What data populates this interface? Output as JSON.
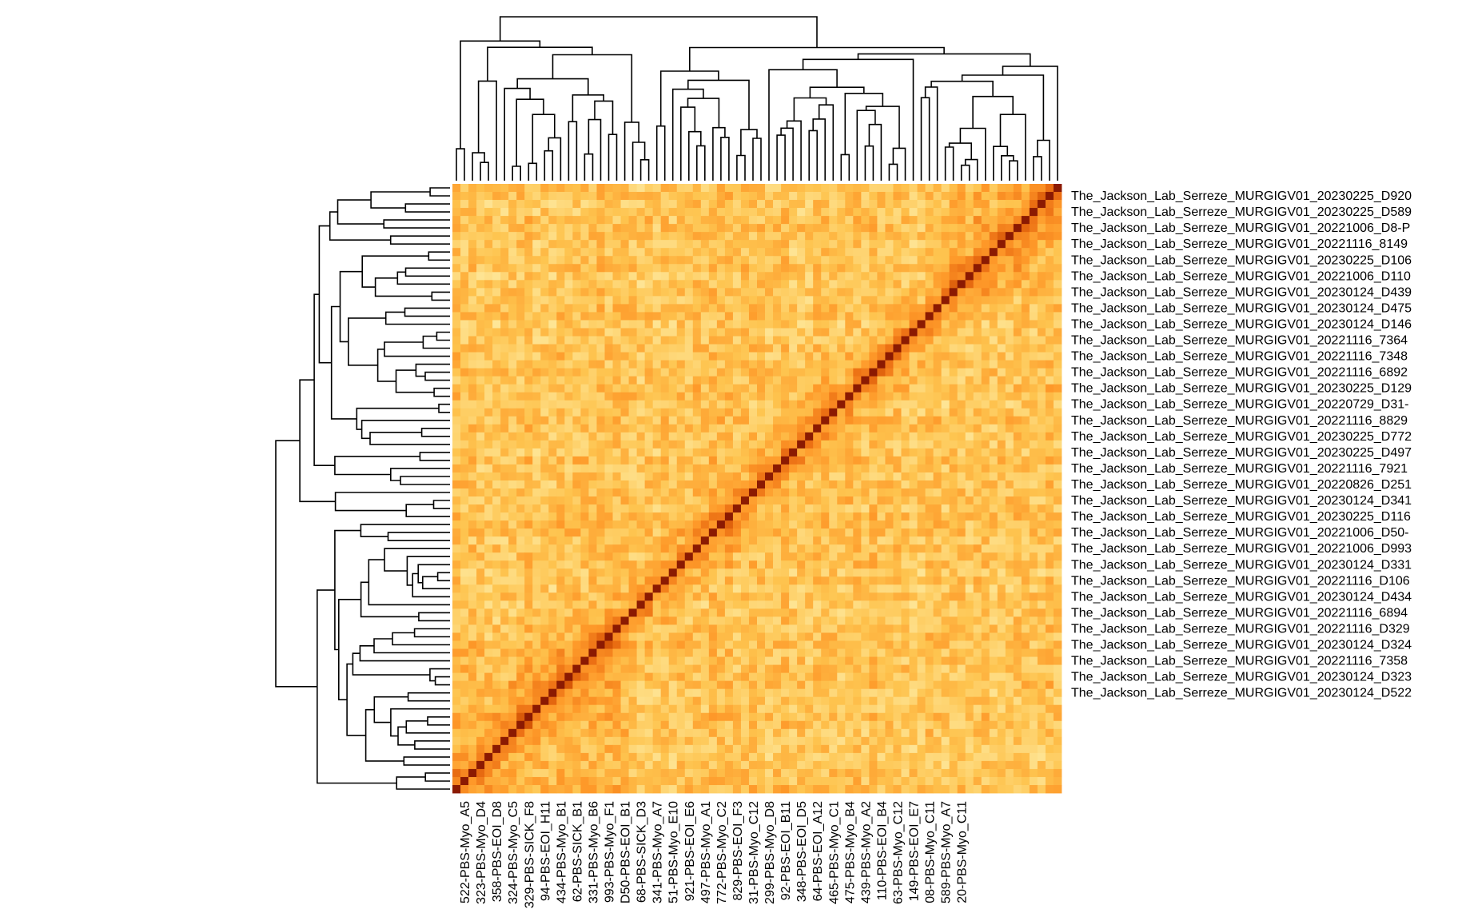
{
  "chart_data": {
    "type": "heatmap",
    "title": "",
    "xlabel": "",
    "ylabel": "",
    "n": 76,
    "colormap": [
      "#fff7bc",
      "#fee391",
      "#fec44f",
      "#fe9929",
      "#ec7014",
      "#cc4c02",
      "#993404",
      "#8c1a04"
    ],
    "diagonal_color": "#8b1a02",
    "row_labels": [
      "The_Jackson_Lab_Serreze_MURGIGV01_20230225_D920",
      "The_Jackson_Lab_Serreze_MURGIGV01_20230225_D589",
      "The_Jackson_Lab_Serreze_MURGIGV01_20221006_D8-P",
      "The_Jackson_Lab_Serreze_MURGIGV01_20221116_8149",
      "The_Jackson_Lab_Serreze_MURGIGV01_20230225_D106",
      "The_Jackson_Lab_Serreze_MURGIGV01_20221006_D110",
      "The_Jackson_Lab_Serreze_MURGIGV01_20230124_D439",
      "The_Jackson_Lab_Serreze_MURGIGV01_20230124_D475",
      "The_Jackson_Lab_Serreze_MURGIGV01_20230124_D146",
      "The_Jackson_Lab_Serreze_MURGIGV01_20221116_7364",
      "The_Jackson_Lab_Serreze_MURGIGV01_20221116_7348",
      "The_Jackson_Lab_Serreze_MURGIGV01_20221116_6892",
      "The_Jackson_Lab_Serreze_MURGIGV01_20230225_D129",
      "The_Jackson_Lab_Serreze_MURGIGV01_20220729_D31-",
      "The_Jackson_Lab_Serreze_MURGIGV01_20221116_8829",
      "The_Jackson_Lab_Serreze_MURGIGV01_20230225_D772",
      "The_Jackson_Lab_Serreze_MURGIGV01_20230225_D497",
      "The_Jackson_Lab_Serreze_MURGIGV01_20221116_7921",
      "The_Jackson_Lab_Serreze_MURGIGV01_20220826_D251",
      "The_Jackson_Lab_Serreze_MURGIGV01_20230124_D341",
      "The_Jackson_Lab_Serreze_MURGIGV01_20230225_D116",
      "The_Jackson_Lab_Serreze_MURGIGV01_20221006_D50-",
      "The_Jackson_Lab_Serreze_MURGIGV01_20221006_D993",
      "The_Jackson_Lab_Serreze_MURGIGV01_20230124_D331",
      "The_Jackson_Lab_Serreze_MURGIGV01_20221116_D106",
      "The_Jackson_Lab_Serreze_MURGIGV01_20230124_D434",
      "The_Jackson_Lab_Serreze_MURGIGV01_20221116_6894",
      "The_Jackson_Lab_Serreze_MURGIGV01_20221116_D329",
      "The_Jackson_Lab_Serreze_MURGIGV01_20230124_D324",
      "The_Jackson_Lab_Serreze_MURGIGV01_20221116_7358",
      "The_Jackson_Lab_Serreze_MURGIGV01_20230124_D323",
      "The_Jackson_Lab_Serreze_MURGIGV01_20230124_D522"
    ],
    "col_labels": [
      "522-PBS-Myo_A5",
      "323-PBS-Myo_D4",
      "358-PBS-EOI_D8",
      "324-PBS-Myo_C5",
      "329-PBS-SICK_F8",
      "94-PBS-EOI_H11",
      "434-PBS-Myo_B1",
      "62-PBS-SICK_B1",
      "331-PBS-Myo_B6",
      "993-PBS-Myo_F1",
      "D50-PBS-EOI_B1",
      "68-PBS-SICK_D3",
      "341-PBS-Myo_A7",
      "51-PBS-Myo_E10",
      "921-PBS-EOI_E6",
      "497-PBS-Myo_A1",
      "772-PBS-Myo_C2",
      "829-PBS-EOI_F3",
      "31-PBS-Myo_C12",
      "299-PBS-Myo_D8",
      "92-PBS-EOI_B11",
      "348-PBS-EOI_D5",
      "64-PBS-EOI_A12",
      "465-PBS-Myo_C1",
      "475-PBS-Myo_B4",
      "439-PBS-Myo_A2",
      "110-PBS-EOI_B4",
      "63-PBS-Myo_C12",
      "149-PBS-EOI_E7",
      "08-PBS-Myo_C11",
      "589-PBS-Myo_A7",
      "20-PBS-Myo_C11"
    ]
  }
}
